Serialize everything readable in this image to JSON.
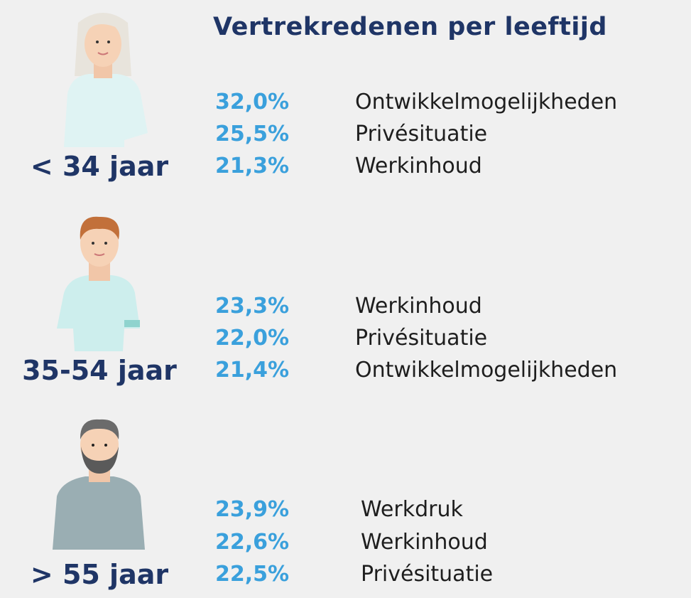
{
  "header": {
    "title": "Vertrekredenen per leeftijd"
  },
  "groups": [
    {
      "label": "< 34 jaar",
      "items": [
        {
          "pct": "32,0%",
          "reason": "Ontwikkelmogelijkheden"
        },
        {
          "pct": "25,5%",
          "reason": "Privésituatie"
        },
        {
          "pct": "21,3%",
          "reason": "Werkinhoud"
        }
      ]
    },
    {
      "label": "35-54 jaar",
      "items": [
        {
          "pct": "23,3%",
          "reason": "Werkinhoud"
        },
        {
          "pct": "22,0%",
          "reason": "Privésituatie"
        },
        {
          "pct": "21,4%",
          "reason": "Ontwikkelmogelijkheden"
        }
      ]
    },
    {
      "label": "> 55 jaar",
      "items": [
        {
          "pct": "23,9%",
          "reason": "Werkdruk"
        },
        {
          "pct": "22,6%",
          "reason": "Werkinhoud"
        },
        {
          "pct": "22,5%",
          "reason": "Privésituatie"
        }
      ]
    }
  ]
}
